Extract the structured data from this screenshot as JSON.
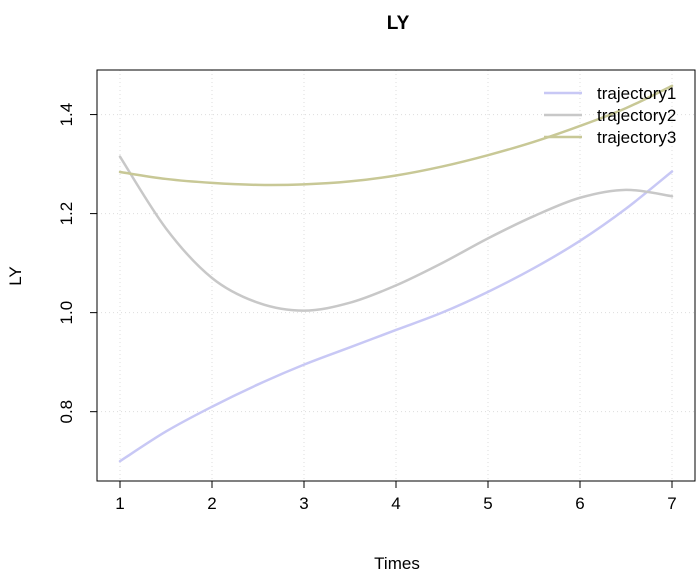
{
  "chart_data": {
    "type": "line",
    "title": "LY",
    "xlabel": "Times",
    "ylabel": "LY",
    "xlim": [
      0.75,
      7.25
    ],
    "ylim": [
      0.66,
      1.49
    ],
    "xticks": [
      1,
      2,
      3,
      4,
      5,
      6,
      7
    ],
    "xtick_labels": [
      "1",
      "2",
      "3",
      "4",
      "5",
      "6",
      "7"
    ],
    "yticks": [
      0.8,
      1.0,
      1.2,
      1.4
    ],
    "ytick_labels": [
      "0.8",
      "1.0",
      "1.2",
      "1.4"
    ],
    "grid": true,
    "legend_position": "top-right",
    "x": [
      1,
      1.5,
      2,
      2.5,
      3,
      3.5,
      4,
      4.5,
      5,
      5.5,
      6,
      6.5,
      7
    ],
    "series": [
      {
        "name": "trajectory1",
        "color": "#c8c8f5",
        "values": [
          0.7,
          0.76,
          0.81,
          0.855,
          0.895,
          0.93,
          0.965,
          1.0,
          1.042,
          1.09,
          1.145,
          1.21,
          1.285
        ]
      },
      {
        "name": "trajectory2",
        "color": "#c8c8c8",
        "values": [
          1.315,
          1.17,
          1.07,
          1.02,
          1.004,
          1.02,
          1.055,
          1.1,
          1.15,
          1.195,
          1.232,
          1.248,
          1.235
        ]
      },
      {
        "name": "trajectory3",
        "color": "#c8c896",
        "values": [
          1.284,
          1.27,
          1.262,
          1.258,
          1.259,
          1.265,
          1.277,
          1.295,
          1.318,
          1.345,
          1.377,
          1.413,
          1.458
        ]
      }
    ]
  }
}
